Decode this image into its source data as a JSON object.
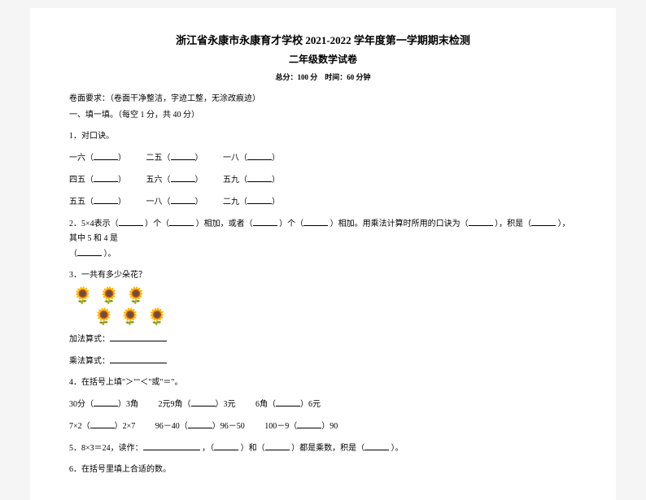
{
  "header": {
    "title_main": "浙江省永康市永康育才学校 2021-2022 学年度第一学期期末检测",
    "title_sub": "二年级数学试卷",
    "score_time": "总分：100 分　时间：60 分钟"
  },
  "hint": "卷面要求：（卷面干净整洁，字迹工整，无涂改痕迹）",
  "section1_title": "一、填一填。（每空 1 分，共 40 分）",
  "q1": {
    "title": "1．对口诀。",
    "row1": {
      "a": "一六（",
      "b": "二五（",
      "c": "一八（"
    },
    "row2": {
      "a": "四五（",
      "b": "五六（",
      "c": "五九（"
    },
    "row3": {
      "a": "五五（",
      "b": "一八（",
      "c": "二九（"
    }
  },
  "q2": {
    "text_a": "2．5×4表示（",
    "text_b": "）个（",
    "text_c": "）相加，或者（",
    "text_d": "）个（",
    "text_e": "）相加。用乘法计算时所用的口诀为（",
    "text_f": "），积是（",
    "text_g": "），其中 5 和 4 是",
    "text_h": "（",
    "text_i": "）。"
  },
  "q3": {
    "title": "3．一共有多少朵花？",
    "add_label": "加法算式：",
    "mul_label": "乘法算式："
  },
  "q4": {
    "title": "4．在括号上填\"＞\"\"＜\"或\"＝\"。",
    "r1": {
      "a": "30分（",
      "a2": "）3角",
      "b": "2元9角（",
      "b2": "）3元",
      "c": "6角（",
      "c2": "）6元"
    },
    "r2": {
      "a": "7×2（",
      "a2": "）2×7",
      "b": "96－40（",
      "b2": "）96－50",
      "c": "100－9（",
      "c2": "）90"
    }
  },
  "q5": {
    "a": "5．8×3＝24，读作：",
    "b": "，（",
    "c": "）和（",
    "d": "）都是乘数，积是（",
    "e": "）。"
  },
  "q6": {
    "title": "6．在括号里填上合适的数。"
  },
  "style": {
    "bg": "#f5f5f5",
    "page_bg": "#ffffff",
    "text_color": "#000000",
    "base_fontsize": 10,
    "title_fontsize": 13,
    "blank_width": 30,
    "blank_lg_width": 70
  }
}
